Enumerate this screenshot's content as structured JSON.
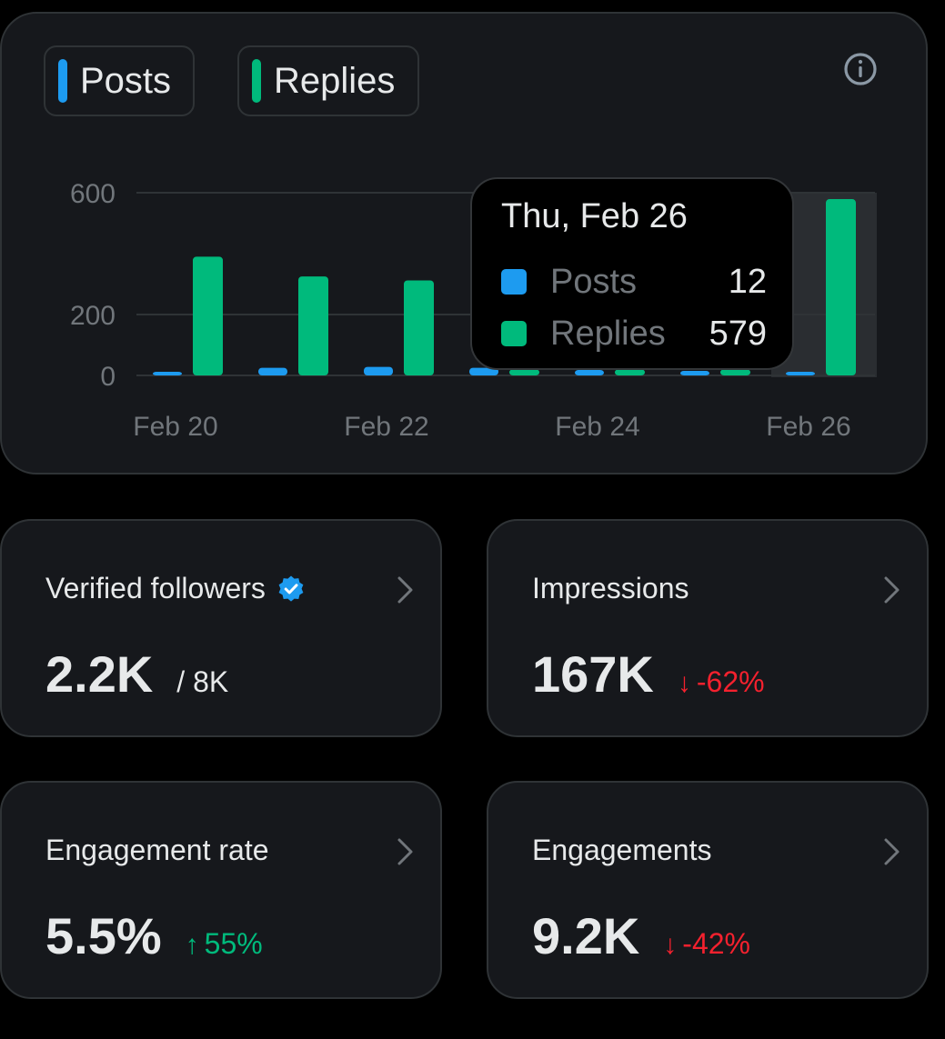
{
  "legend": {
    "posts_label": "Posts",
    "replies_label": "Replies",
    "posts_color": "#1d9bf0",
    "replies_color": "#00ba7c"
  },
  "chart_data": {
    "type": "bar",
    "categories": [
      "Feb 20",
      "Feb 21",
      "Feb 22",
      "Feb 23",
      "Feb 24",
      "Feb 25",
      "Feb 26"
    ],
    "x_tick_labels": [
      "Feb 20",
      "Feb 22",
      "Feb 24",
      "Feb 26"
    ],
    "y_tick_labels": [
      "600",
      "200",
      "0"
    ],
    "y_ticks": [
      600,
      200,
      0
    ],
    "ylim": [
      0,
      600
    ],
    "series": [
      {
        "name": "Posts",
        "color": "#1d9bf0",
        "values": [
          10,
          25,
          28,
          25,
          18,
          15,
          12
        ]
      },
      {
        "name": "Replies",
        "color": "#00ba7c",
        "values": [
          390,
          325,
          312,
          20,
          20,
          20,
          579
        ]
      }
    ],
    "highlighted_category": "Feb 26"
  },
  "tooltip": {
    "date": "Thu, Feb 26",
    "rows": [
      {
        "name": "Posts",
        "value": "12",
        "color": "#1d9bf0"
      },
      {
        "name": "Replies",
        "value": "579",
        "color": "#00ba7c"
      }
    ]
  },
  "metrics": [
    {
      "label": "Verified followers",
      "value": "2.2K",
      "sub": "/ 8K",
      "icon": "verified-badge-icon"
    },
    {
      "label": "Impressions",
      "value": "167K",
      "delta": "-62%",
      "direction": "down",
      "arrow": "↓"
    },
    {
      "label": "Engagement rate",
      "value": "5.5%",
      "delta": "55%",
      "direction": "up",
      "arrow": "↑"
    },
    {
      "label": "Engagements",
      "value": "9.2K",
      "delta": "-42%",
      "direction": "down",
      "arrow": "↓"
    }
  ],
  "icons": {
    "info": "info-icon",
    "chevron": "chevron-right-icon"
  }
}
